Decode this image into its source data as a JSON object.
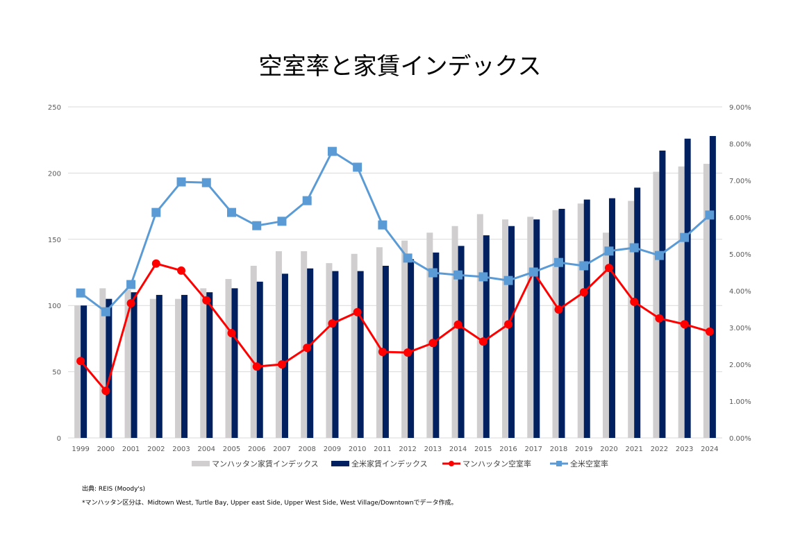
{
  "chart_data": {
    "type": "bar+line",
    "title": "空室率と家賃インデックス",
    "categories": [
      "1999",
      "2000",
      "2001",
      "2002",
      "2003",
      "2004",
      "2005",
      "2006",
      "2007",
      "2008",
      "2009",
      "2010",
      "2011",
      "2012",
      "2013",
      "2014",
      "2015",
      "2016",
      "2017",
      "2018",
      "2019",
      "2020",
      "2021",
      "2022",
      "2023",
      "2024"
    ],
    "y_left": {
      "range": [
        0,
        250
      ],
      "ticks": [
        "0",
        "50",
        "100",
        "150",
        "200",
        "250"
      ]
    },
    "y_right": {
      "range": [
        0,
        9
      ],
      "unit": "%",
      "ticks": [
        "0.00%",
        "1.00%",
        "2.00%",
        "3.00%",
        "4.00%",
        "5.00%",
        "6.00%",
        "7.00%",
        "8.00%",
        "9.00%"
      ]
    },
    "grid": true,
    "legend_placement": "bottom",
    "series": [
      {
        "name": "マンハッタン家賃インデックス",
        "type": "bar",
        "axis": "left",
        "color": "#D0CECE",
        "values": [
          100,
          113,
          112,
          105,
          105,
          113,
          120,
          130,
          141,
          141,
          132,
          139,
          144,
          149,
          155,
          160,
          169,
          165,
          167,
          172,
          177,
          155,
          179,
          201,
          205,
          207
        ]
      },
      {
        "name": "全米家賃インデックス",
        "type": "bar",
        "axis": "left",
        "color": "#002060",
        "values": [
          100,
          105,
          110,
          108,
          108,
          110,
          113,
          118,
          124,
          128,
          126,
          126,
          130,
          135,
          140,
          145,
          153,
          160,
          165,
          173,
          180,
          181,
          189,
          217,
          226,
          228
        ]
      },
      {
        "name": "マンハッタン空室率",
        "type": "line",
        "marker": "circle",
        "axis": "right",
        "color": "#FF0000",
        "values": [
          2.09,
          1.28,
          3.66,
          4.74,
          4.55,
          3.74,
          2.85,
          1.94,
          2.0,
          2.45,
          3.11,
          3.42,
          2.34,
          2.32,
          2.58,
          3.08,
          2.62,
          3.09,
          4.51,
          3.49,
          3.96,
          4.62,
          3.7,
          3.25,
          3.09,
          2.89
        ]
      },
      {
        "name": "全米空室率",
        "type": "line",
        "marker": "square",
        "axis": "right",
        "color": "#5B9BD5",
        "values": [
          3.94,
          3.43,
          4.17,
          6.13,
          6.96,
          6.94,
          6.13,
          5.77,
          5.89,
          6.45,
          7.79,
          7.36,
          5.79,
          4.89,
          4.49,
          4.43,
          4.38,
          4.28,
          4.51,
          4.77,
          4.68,
          5.08,
          5.17,
          4.96,
          5.45,
          6.06
        ]
      }
    ]
  },
  "notes": {
    "source": "出典: REIS (Moody's)",
    "footnote": "*マンハッタン区分は、Midtown West, Turtle  Bay, Upper east Side, Upper West Side, West Village/Downtownでデータ作成。"
  }
}
